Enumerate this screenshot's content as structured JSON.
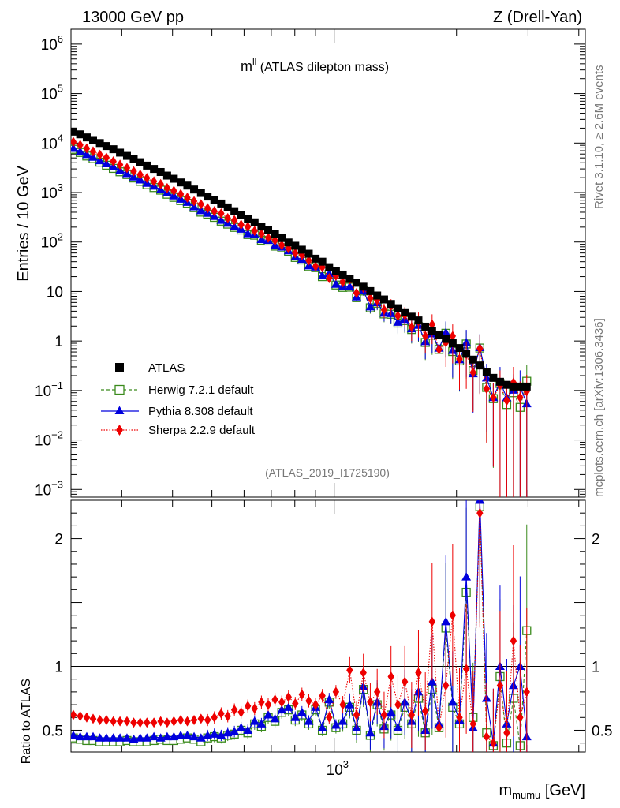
{
  "header": {
    "left": "13000 GeV pp",
    "right": "Z (Drell-Yan)"
  },
  "side": {
    "rivet": "Rivet 3.1.10, ≥ 2.6M events",
    "site": "mcplots.cern.ch [arXiv:1306.3436]"
  },
  "chart_data": {
    "type": "scatter",
    "title_main": "m",
    "title_sup": "ll",
    "title_rest": " (ATLAS dilepton mass)",
    "analysis": "(ATLAS_2019_I1725190)",
    "ylabel_top": "Entries / 10 GeV",
    "ylabel_ratio": "Ratio to ATLAS",
    "xlabel_main": "m",
    "xlabel_sub": "mumu",
    "xlabel_unit": " [GeV]",
    "xscale": "log",
    "yscale_top": "log",
    "xlim": [
      225,
      4150
    ],
    "ylim_top": [
      0.0007,
      2000000
    ],
    "ylim_ratio": [
      0.33,
      2.3
    ],
    "xticks": [
      {
        "v": 1000,
        "label_base": "10",
        "label_exp": "3"
      }
    ],
    "yticks_top": [
      {
        "v": 1000000,
        "label_base": "10",
        "label_exp": "6"
      },
      {
        "v": 100000,
        "label_base": "10",
        "label_exp": "5"
      },
      {
        "v": 10000,
        "label_base": "10",
        "label_exp": "4"
      },
      {
        "v": 1000,
        "label_base": "10",
        "label_exp": "3"
      },
      {
        "v": 100,
        "label_base": "10",
        "label_exp": "2"
      },
      {
        "v": 10,
        "label_base": "10",
        "label_exp": ""
      },
      {
        "v": 1,
        "label_base": "1",
        "label_exp": ""
      },
      {
        "v": 0.1,
        "label_base": "10",
        "label_exp": "−1"
      },
      {
        "v": 0.01,
        "label_base": "10",
        "label_exp": "−2"
      },
      {
        "v": 0.001,
        "label_base": "10",
        "label_exp": "−3"
      }
    ],
    "yticks_ratio": [
      {
        "v": 0.5,
        "label": "0.5"
      },
      {
        "v": 1,
        "label": "1"
      },
      {
        "v": 2,
        "label": "2"
      }
    ],
    "legend_position": "lower-left",
    "series": [
      {
        "name": "ATLAS",
        "color": "#000000",
        "marker": "square-filled",
        "line": "none"
      },
      {
        "name": "Herwig 7.2.1 default",
        "color": "#3a8a1c",
        "marker": "square-open",
        "line": "dashed"
      },
      {
        "name": "Pythia 8.308 default",
        "color": "#0000dd",
        "marker": "triangle-filled",
        "line": "solid"
      },
      {
        "name": "Sherpa 2.2.9 default",
        "color": "#ee0000",
        "marker": "diamond-filled",
        "line": "dotted"
      }
    ],
    "data": {
      "atlas": {
        "x": [
          228,
          237,
          246,
          255,
          265,
          275,
          286,
          297,
          309,
          321,
          333,
          346,
          360,
          374,
          388,
          403,
          419,
          435,
          452,
          470,
          488,
          507,
          527,
          547,
          568,
          590,
          613,
          637,
          662,
          688,
          715,
          743,
          772,
          802,
          833,
          866,
          900,
          935,
          972,
          1010,
          1050,
          1092,
          1135,
          1180,
          1227,
          1276,
          1327,
          1380,
          1435,
          1492,
          1551,
          1612,
          1676,
          1742,
          1811,
          1883,
          1957,
          2034,
          2114,
          2197,
          2283,
          2372,
          2464,
          2560,
          2659,
          2762,
          2868,
          2978
        ],
        "y": [
          17000,
          15000,
          13000,
          11500,
          10000,
          8700,
          7500,
          6400,
          5500,
          4800,
          4100,
          3500,
          3000,
          2600,
          2200,
          1900,
          1600,
          1380,
          1150,
          980,
          830,
          700,
          600,
          500,
          420,
          350,
          295,
          250,
          205,
          175,
          145,
          120,
          98,
          84,
          70,
          58,
          46,
          40,
          31,
          26,
          22,
          18,
          15,
          12.5,
          10.2,
          8.3,
          6.9,
          5.6,
          4.6,
          3.8,
          3.1,
          2.6,
          1.95,
          1.6,
          1.3,
          1.1,
          0.9,
          0.72,
          0.55,
          0.42,
          0.32,
          0.24,
          0.18,
          0.15,
          0.13,
          0.12,
          0.12,
          0.12
        ]
      },
      "ratio_x": [
        228,
        237,
        246,
        255,
        265,
        275,
        286,
        297,
        309,
        321,
        333,
        346,
        360,
        374,
        388,
        403,
        419,
        435,
        452,
        470,
        488,
        507,
        527,
        547,
        568,
        590,
        613,
        637,
        662,
        688,
        715,
        743,
        772,
        802,
        833,
        866,
        900,
        935,
        972,
        1010,
        1050,
        1092,
        1135,
        1180,
        1227,
        1276,
        1327,
        1380,
        1435,
        1492,
        1551,
        1612,
        1676,
        1742,
        1811,
        1883,
        1957,
        2034,
        2114,
        2197,
        2283,
        2372,
        2464,
        2560,
        2659,
        2762,
        2868,
        2978
      ],
      "ratio_herwig": [
        0.44,
        0.43,
        0.42,
        0.42,
        0.41,
        0.41,
        0.41,
        0.41,
        0.42,
        0.41,
        0.41,
        0.41,
        0.42,
        0.43,
        0.42,
        0.42,
        0.43,
        0.44,
        0.43,
        0.41,
        0.44,
        0.45,
        0.44,
        0.46,
        0.47,
        0.5,
        0.48,
        0.55,
        0.53,
        0.6,
        0.57,
        0.64,
        0.66,
        0.58,
        0.62,
        0.55,
        0.66,
        0.5,
        0.72,
        0.52,
        0.55,
        0.68,
        0.5,
        0.82,
        0.46,
        0.7,
        0.51,
        0.62,
        0.5,
        0.68,
        0.55,
        0.75,
        0.48,
        0.82,
        0.52,
        1.3,
        0.68,
        0.55,
        1.58,
        0.6,
        2.25,
        0.48,
        0.38,
        0.92,
        0.4,
        0.75,
        0.38,
        1.28
      ],
      "ratio_pythia": [
        0.46,
        0.45,
        0.45,
        0.45,
        0.44,
        0.44,
        0.44,
        0.44,
        0.44,
        0.43,
        0.44,
        0.44,
        0.45,
        0.44,
        0.45,
        0.45,
        0.46,
        0.46,
        0.45,
        0.44,
        0.46,
        0.47,
        0.46,
        0.48,
        0.49,
        0.52,
        0.5,
        0.57,
        0.55,
        0.62,
        0.59,
        0.66,
        0.68,
        0.6,
        0.64,
        0.57,
        0.68,
        0.52,
        0.74,
        0.54,
        0.57,
        0.7,
        0.52,
        0.84,
        0.48,
        0.72,
        0.53,
        0.64,
        0.52,
        0.72,
        0.57,
        0.8,
        0.5,
        0.88,
        0.55,
        1.35,
        0.72,
        0.58,
        1.7,
        0.52,
        2.3,
        0.75,
        0.4,
        1.0,
        0.55,
        0.85,
        1.0,
        0.45
      ],
      "ratio_sherpa": [
        0.62,
        0.61,
        0.6,
        0.59,
        0.58,
        0.58,
        0.57,
        0.57,
        0.57,
        0.56,
        0.56,
        0.56,
        0.56,
        0.57,
        0.56,
        0.57,
        0.58,
        0.57,
        0.58,
        0.59,
        0.58,
        0.6,
        0.63,
        0.61,
        0.66,
        0.64,
        0.69,
        0.67,
        0.72,
        0.7,
        0.74,
        0.72,
        0.76,
        0.71,
        0.78,
        0.73,
        0.7,
        0.77,
        0.6,
        0.8,
        0.7,
        0.97,
        0.62,
        0.95,
        0.72,
        0.8,
        0.62,
        0.92,
        0.7,
        0.88,
        0.62,
        0.95,
        0.65,
        1.35,
        0.52,
        0.85,
        1.4,
        0.6,
        0.98,
        0.55,
        2.2,
        0.45,
        0.4,
        0.85,
        0.48,
        1.2,
        0.6,
        0.8
      ]
    }
  }
}
